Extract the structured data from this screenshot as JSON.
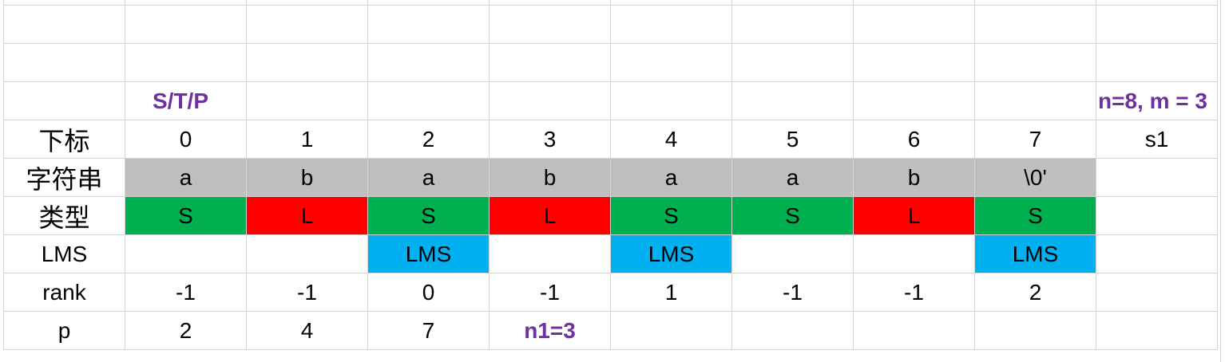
{
  "title": "S/T/P",
  "params": "n=8, m = 3",
  "n1": "n1=3",
  "row_labels": {
    "index": "下标",
    "string": "字符串",
    "type": "类型",
    "lms": "LMS",
    "rank": "rank",
    "p": "p"
  },
  "index": [
    "0",
    "1",
    "2",
    "3",
    "4",
    "5",
    "6",
    "7"
  ],
  "s1_label": "s1",
  "string": [
    "a",
    "b",
    "a",
    "b",
    "a",
    "a",
    "b",
    "\\0'"
  ],
  "types": [
    "S",
    "L",
    "S",
    "L",
    "S",
    "S",
    "L",
    "S"
  ],
  "lms": [
    "",
    "",
    "LMS",
    "",
    "LMS",
    "",
    "",
    "LMS"
  ],
  "rank": [
    "-1",
    "-1",
    "0",
    "-1",
    "1",
    "-1",
    "-1",
    "2"
  ],
  "p": [
    "2",
    "4",
    "7"
  ],
  "colors": {
    "gray": "#bfbfbf",
    "S": "#00b050",
    "L": "#ff0000",
    "LMS": "#00b0f0",
    "accent_text": "#7030a0"
  }
}
